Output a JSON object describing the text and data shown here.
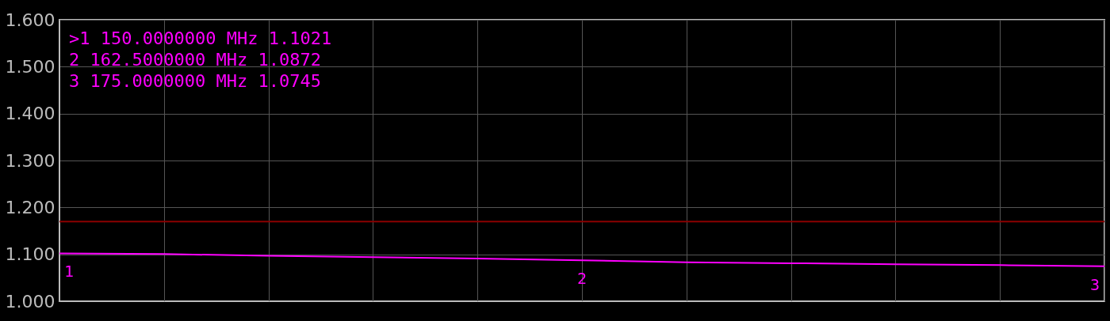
{
  "chart_data": {
    "type": "line",
    "categories": [
      null,
      null,
      null,
      null,
      null,
      null,
      null,
      null,
      null,
      null,
      null
    ],
    "series": [
      {
        "color": "#ff00ff",
        "values": [
          1.1021,
          1.1005,
          1.097,
          1.094,
          1.091,
          1.0872,
          1.083,
          1.081,
          1.079,
          1.077,
          1.0745
        ]
      }
    ],
    "ylim": [
      1.0,
      1.6
    ],
    "yticks": [
      {
        "value": 1.0,
        "label": "1.000"
      },
      {
        "value": 1.1,
        "label": "1.100"
      },
      {
        "value": 1.2,
        "label": "1.200"
      },
      {
        "value": 1.3,
        "label": "1.300"
      },
      {
        "value": 1.4,
        "label": "1.400"
      },
      {
        "value": 1.5,
        "label": "1.500"
      },
      {
        "value": 1.6,
        "label": "1.600"
      }
    ],
    "tick_labels": "y",
    "grid": true,
    "ref_lines": [
      {
        "axis": "y",
        "value": 1.17,
        "color": "#8b0000"
      }
    ],
    "annotations": [
      ">1  150.0000000 MHz  1.1021",
      " 2  162.5000000 MHz  1.0872",
      " 3  175.0000000 MHz  1.0745",
      {
        "text": "1",
        "y": 1.1021
      },
      {
        "text": "2",
        "y": 1.0872
      },
      {
        "text": "3",
        "y": 1.0745
      }
    ]
  }
}
